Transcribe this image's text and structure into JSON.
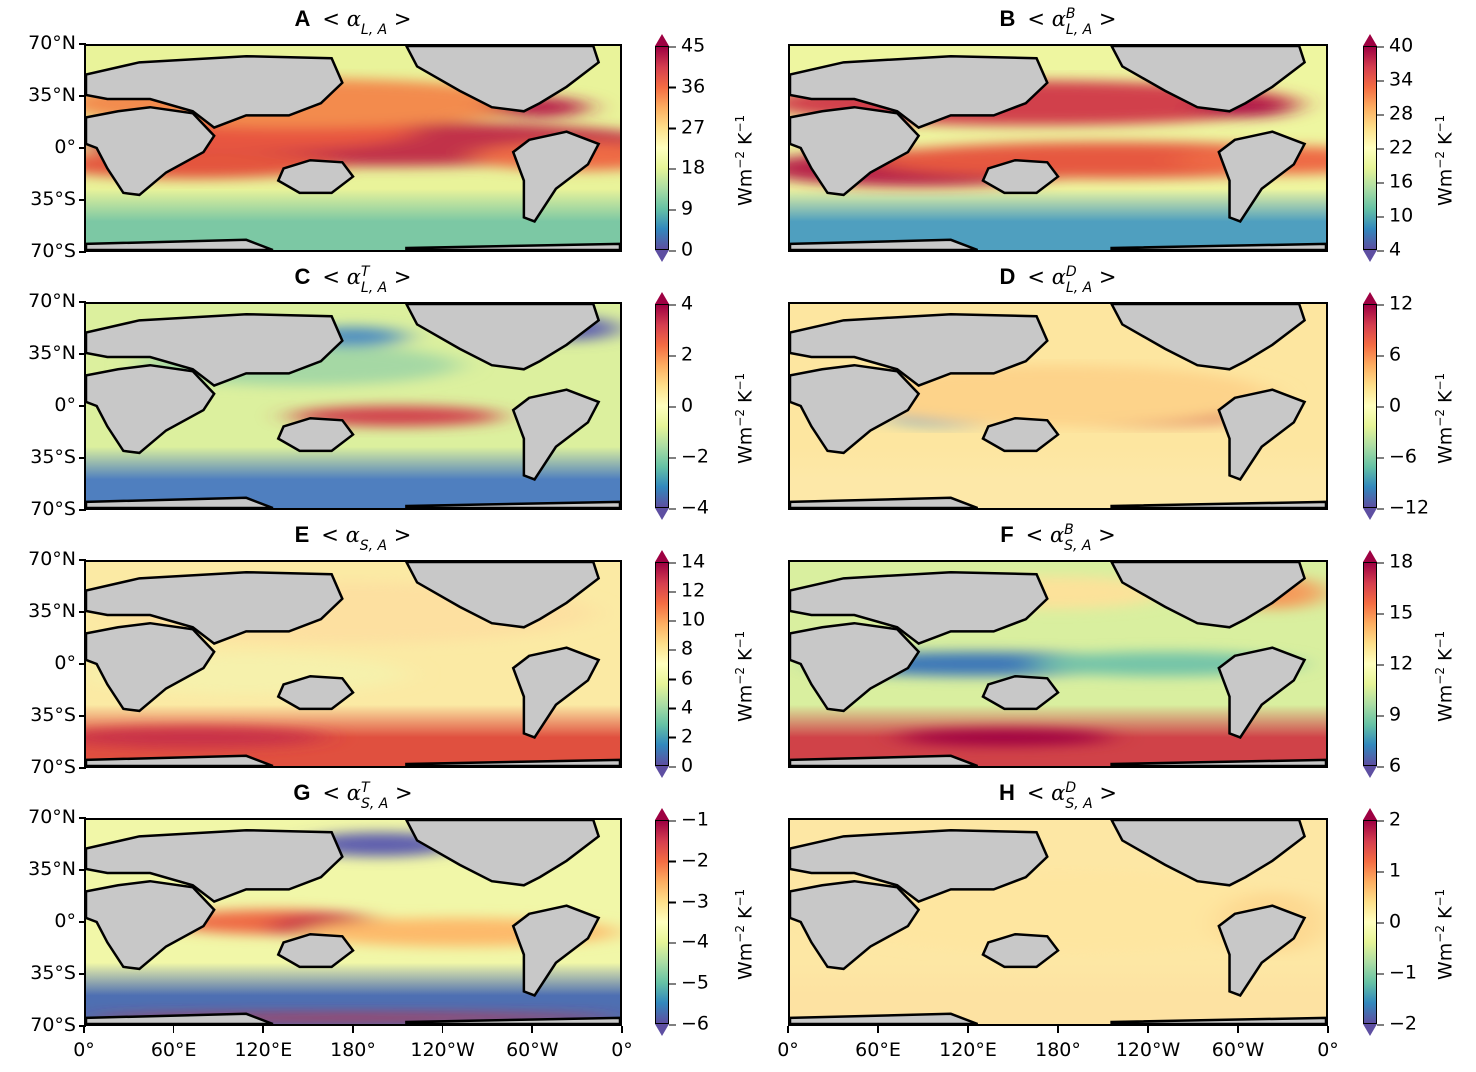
{
  "chart_data": [
    {
      "panel": "A",
      "type": "heatmap",
      "title": "< α_{L,A} >",
      "symbol": "α",
      "subscript": "L, A",
      "superscript": "",
      "colormap": "Spectral_r",
      "colorbar_label": "Wm⁻² K⁻¹",
      "ticks": [
        "45",
        "36",
        "27",
        "18",
        "9",
        "0"
      ],
      "vmin": 0,
      "vmax": 45,
      "xlim": [
        "0°",
        "0°"
      ],
      "ylim": [
        "70°S",
        "70°N"
      ]
    },
    {
      "panel": "B",
      "type": "heatmap",
      "title": "< α^B_{L,A} >",
      "symbol": "α",
      "subscript": "L, A",
      "superscript": "B",
      "colormap": "Spectral_r",
      "colorbar_label": "Wm⁻² K⁻¹",
      "ticks": [
        "40",
        "34",
        "28",
        "22",
        "16",
        "10",
        "4"
      ],
      "vmin": 4,
      "vmax": 40
    },
    {
      "panel": "C",
      "type": "heatmap",
      "title": "< α^T_{L,A} >",
      "symbol": "α",
      "subscript": "L, A",
      "superscript": "T",
      "colormap": "Spectral_r",
      "colorbar_label": "Wm⁻² K⁻¹",
      "ticks": [
        "4",
        "2",
        "0",
        "−2",
        "−4"
      ],
      "vmin": -4,
      "vmax": 4
    },
    {
      "panel": "D",
      "type": "heatmap",
      "title": "< α^D_{L,A} >",
      "symbol": "α",
      "subscript": "L, A",
      "superscript": "D",
      "colormap": "Spectral_r",
      "colorbar_label": "Wm⁻² K⁻¹",
      "ticks": [
        "12",
        "6",
        "0",
        "−6",
        "−12"
      ],
      "vmin": -12,
      "vmax": 12
    },
    {
      "panel": "E",
      "type": "heatmap",
      "title": "< α_{S,A} >",
      "symbol": "α",
      "subscript": "S, A",
      "superscript": "",
      "colormap": "Spectral_r",
      "colorbar_label": "Wm⁻² K⁻¹",
      "ticks": [
        "14",
        "12",
        "10",
        "8",
        "6",
        "4",
        "2",
        "0"
      ],
      "vmin": 0,
      "vmax": 14
    },
    {
      "panel": "F",
      "type": "heatmap",
      "title": "< α^B_{S,A} >",
      "symbol": "α",
      "subscript": "S, A",
      "superscript": "B",
      "colormap": "Spectral_r",
      "colorbar_label": "Wm⁻² K⁻¹",
      "ticks": [
        "18",
        "15",
        "12",
        "9",
        "6"
      ],
      "vmin": 6,
      "vmax": 18
    },
    {
      "panel": "G",
      "type": "heatmap",
      "title": "< α^T_{S,A} >",
      "symbol": "α",
      "subscript": "S, A",
      "superscript": "T",
      "colormap": "Spectral_r",
      "colorbar_label": "Wm⁻² K⁻¹",
      "ticks": [
        "−1",
        "−2",
        "−3",
        "−4",
        "−5",
        "−6"
      ],
      "vmin": -6,
      "vmax": -1
    },
    {
      "panel": "H",
      "type": "heatmap",
      "title": "< α^D_{S,A} >",
      "symbol": "α",
      "subscript": "S, A",
      "superscript": "D",
      "colormap": "Spectral_r",
      "colorbar_label": "Wm⁻² K⁻¹",
      "ticks": [
        "2",
        "1",
        "0",
        "−1",
        "−2"
      ],
      "vmin": -2,
      "vmax": 2
    }
  ],
  "axes": {
    "lat_ticks": [
      "70°N",
      "35°N",
      "0°",
      "35°S",
      "70°S"
    ],
    "lon_ticks": [
      "0°",
      "60°E",
      "120°E",
      "180°",
      "120°W",
      "60°W",
      "0°"
    ]
  },
  "panels": {
    "A": {
      "letter": "A",
      "pre": "< ",
      "sym": "α",
      "sup": "",
      "sub": "L, A",
      "post": " >",
      "unit": "Wm",
      "unit_exp": "−2",
      "unit_k": " K",
      "unit_k_exp": "−1",
      "ticks": [
        "45",
        "36",
        "27",
        "18",
        "9",
        "0"
      ]
    },
    "B": {
      "letter": "B",
      "pre": "< ",
      "sym": "α",
      "sup": "B",
      "sub": "L, A",
      "post": " >",
      "unit": "Wm",
      "unit_exp": "−2",
      "unit_k": " K",
      "unit_k_exp": "−1",
      "ticks": [
        "40",
        "34",
        "28",
        "22",
        "16",
        "10",
        "4"
      ]
    },
    "C": {
      "letter": "C",
      "pre": "< ",
      "sym": "α",
      "sup": "T",
      "sub": "L, A",
      "post": " >",
      "unit": "Wm",
      "unit_exp": "−2",
      "unit_k": " K",
      "unit_k_exp": "−1",
      "ticks": [
        "4",
        "2",
        "0",
        "−2",
        "−4"
      ]
    },
    "D": {
      "letter": "D",
      "pre": "< ",
      "sym": "α",
      "sup": "D",
      "sub": "L, A",
      "post": " >",
      "unit": "Wm",
      "unit_exp": "−2",
      "unit_k": " K",
      "unit_k_exp": "−1",
      "ticks": [
        "12",
        "6",
        "0",
        "−6",
        "−12"
      ]
    },
    "E": {
      "letter": "E",
      "pre": "< ",
      "sym": "α",
      "sup": "",
      "sub": "S, A",
      "post": " >",
      "unit": "Wm",
      "unit_exp": "−2",
      "unit_k": " K",
      "unit_k_exp": "−1",
      "ticks": [
        "14",
        "12",
        "10",
        "8",
        "6",
        "4",
        "2",
        "0"
      ]
    },
    "F": {
      "letter": "F",
      "pre": "< ",
      "sym": "α",
      "sup": "B",
      "sub": "S, A",
      "post": " >",
      "unit": "Wm",
      "unit_exp": "−2",
      "unit_k": " K",
      "unit_k_exp": "−1",
      "ticks": [
        "18",
        "15",
        "12",
        "9",
        "6"
      ]
    },
    "G": {
      "letter": "G",
      "pre": "< ",
      "sym": "α",
      "sup": "T",
      "sub": "S, A",
      "post": " >",
      "unit": "Wm",
      "unit_exp": "−2",
      "unit_k": " K",
      "unit_k_exp": "−1",
      "ticks": [
        "−1",
        "−2",
        "−3",
        "−4",
        "−5",
        "−6"
      ]
    },
    "H": {
      "letter": "H",
      "pre": "< ",
      "sym": "α",
      "sup": "D",
      "sub": "S, A",
      "post": " >",
      "unit": "Wm",
      "unit_exp": "−2",
      "unit_k": " K",
      "unit_k_exp": "−1",
      "ticks": [
        "2",
        "1",
        "0",
        "−1",
        "−2"
      ]
    }
  },
  "colors": {
    "land": "#c8c8c8",
    "coast": "#000000",
    "cmap": [
      "#5e4fa2",
      "#3288bd",
      "#66c2a5",
      "#abdda4",
      "#e6f598",
      "#ffffbf",
      "#fee08b",
      "#fdae61",
      "#f46d43",
      "#d53e4f",
      "#9e0142"
    ]
  }
}
